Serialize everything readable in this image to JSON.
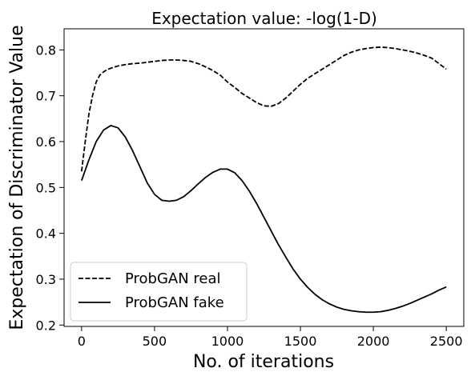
{
  "chart_data": {
    "type": "line",
    "title": "Expectation value: -log(1-D)",
    "xlabel": "No. of iterations",
    "ylabel": "Expectation of Discriminator Value",
    "xlim": [
      -120,
      2620
    ],
    "ylim": [
      0.197,
      0.846
    ],
    "xticks": [
      0,
      500,
      1000,
      1500,
      2000,
      2500
    ],
    "yticks": [
      0.2,
      0.3,
      0.4,
      0.5,
      0.6,
      0.7,
      0.8
    ],
    "xtick_labels": [
      "0",
      "500",
      "1000",
      "1500",
      "2000",
      "2500"
    ],
    "ytick_labels": [
      "0.2",
      "0.3",
      "0.4",
      "0.5",
      "0.6",
      "0.7",
      "0.8"
    ],
    "grid": false,
    "legend": "lower-left",
    "color": "#000000",
    "series": [
      {
        "name": "ProbGAN real",
        "style": "dashed",
        "x": [
          0,
          25,
          50,
          75,
          100,
          125,
          150,
          175,
          200,
          250,
          300,
          350,
          400,
          450,
          500,
          550,
          600,
          650,
          700,
          750,
          800,
          850,
          900,
          950,
          1000,
          1050,
          1100,
          1150,
          1200,
          1250,
          1300,
          1350,
          1400,
          1450,
          1500,
          1550,
          1600,
          1650,
          1700,
          1750,
          1800,
          1850,
          1900,
          1950,
          2000,
          2050,
          2100,
          2150,
          2200,
          2250,
          2300,
          2350,
          2400,
          2450,
          2500
        ],
        "values": [
          0.535,
          0.6,
          0.66,
          0.7,
          0.73,
          0.745,
          0.752,
          0.757,
          0.76,
          0.765,
          0.768,
          0.77,
          0.771,
          0.773,
          0.775,
          0.777,
          0.778,
          0.778,
          0.777,
          0.775,
          0.77,
          0.763,
          0.755,
          0.745,
          0.73,
          0.718,
          0.705,
          0.695,
          0.685,
          0.678,
          0.677,
          0.683,
          0.695,
          0.71,
          0.725,
          0.738,
          0.748,
          0.758,
          0.768,
          0.778,
          0.788,
          0.795,
          0.8,
          0.803,
          0.805,
          0.806,
          0.805,
          0.803,
          0.8,
          0.797,
          0.793,
          0.788,
          0.782,
          0.77,
          0.758
        ]
      },
      {
        "name": "ProbGAN fake",
        "style": "solid",
        "x": [
          0,
          50,
          100,
          150,
          200,
          250,
          300,
          350,
          400,
          450,
          500,
          550,
          600,
          650,
          700,
          750,
          800,
          850,
          900,
          950,
          1000,
          1050,
          1100,
          1150,
          1200,
          1250,
          1300,
          1350,
          1400,
          1450,
          1500,
          1550,
          1600,
          1650,
          1700,
          1750,
          1800,
          1850,
          1900,
          1950,
          2000,
          2050,
          2100,
          2150,
          2200,
          2250,
          2300,
          2350,
          2400,
          2450,
          2500
        ],
        "values": [
          0.515,
          0.56,
          0.6,
          0.625,
          0.635,
          0.63,
          0.61,
          0.58,
          0.545,
          0.51,
          0.485,
          0.472,
          0.47,
          0.472,
          0.48,
          0.493,
          0.508,
          0.522,
          0.533,
          0.54,
          0.54,
          0.532,
          0.515,
          0.492,
          0.465,
          0.435,
          0.405,
          0.375,
          0.348,
          0.322,
          0.3,
          0.282,
          0.267,
          0.255,
          0.246,
          0.239,
          0.234,
          0.231,
          0.229,
          0.228,
          0.228,
          0.229,
          0.232,
          0.236,
          0.241,
          0.247,
          0.254,
          0.261,
          0.268,
          0.276,
          0.283
        ]
      }
    ]
  }
}
